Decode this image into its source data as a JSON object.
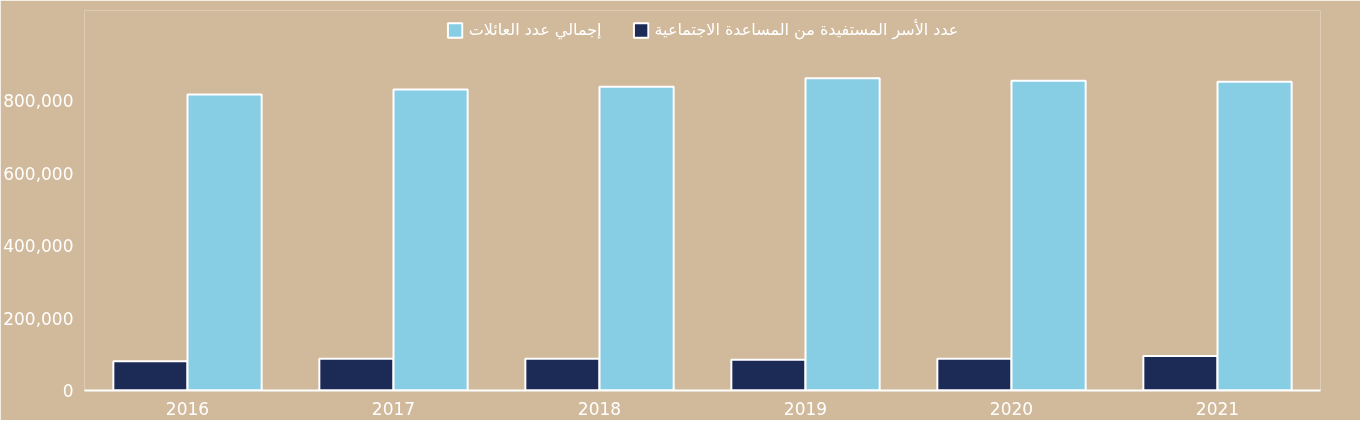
{
  "chart_data": {
    "type": "bar",
    "categories": [
      "2016",
      "2017",
      "2018",
      "2019",
      "2020",
      "2021"
    ],
    "series": [
      {
        "name": "عدد الأسر المستفيدة من المساعدة الاجتماعية",
        "color": "#1c2b55",
        "values": [
          81000,
          88000,
          88000,
          85000,
          88000,
          95000
        ]
      },
      {
        "name": "إجمالي عدد العائلات",
        "color": "#87cde4",
        "values": [
          818000,
          832000,
          839000,
          863000,
          856000,
          853000
        ]
      }
    ],
    "ylim": [
      0,
      1050000
    ],
    "yticks": [
      {
        "value": 0,
        "label": "0"
      },
      {
        "value": 200000,
        "label": "200,000"
      },
      {
        "value": 400000,
        "label": "400,000"
      },
      {
        "value": 600000,
        "label": "600,000"
      },
      {
        "value": 800000,
        "label": "800,000"
      }
    ],
    "grid": false,
    "legend": "top"
  }
}
